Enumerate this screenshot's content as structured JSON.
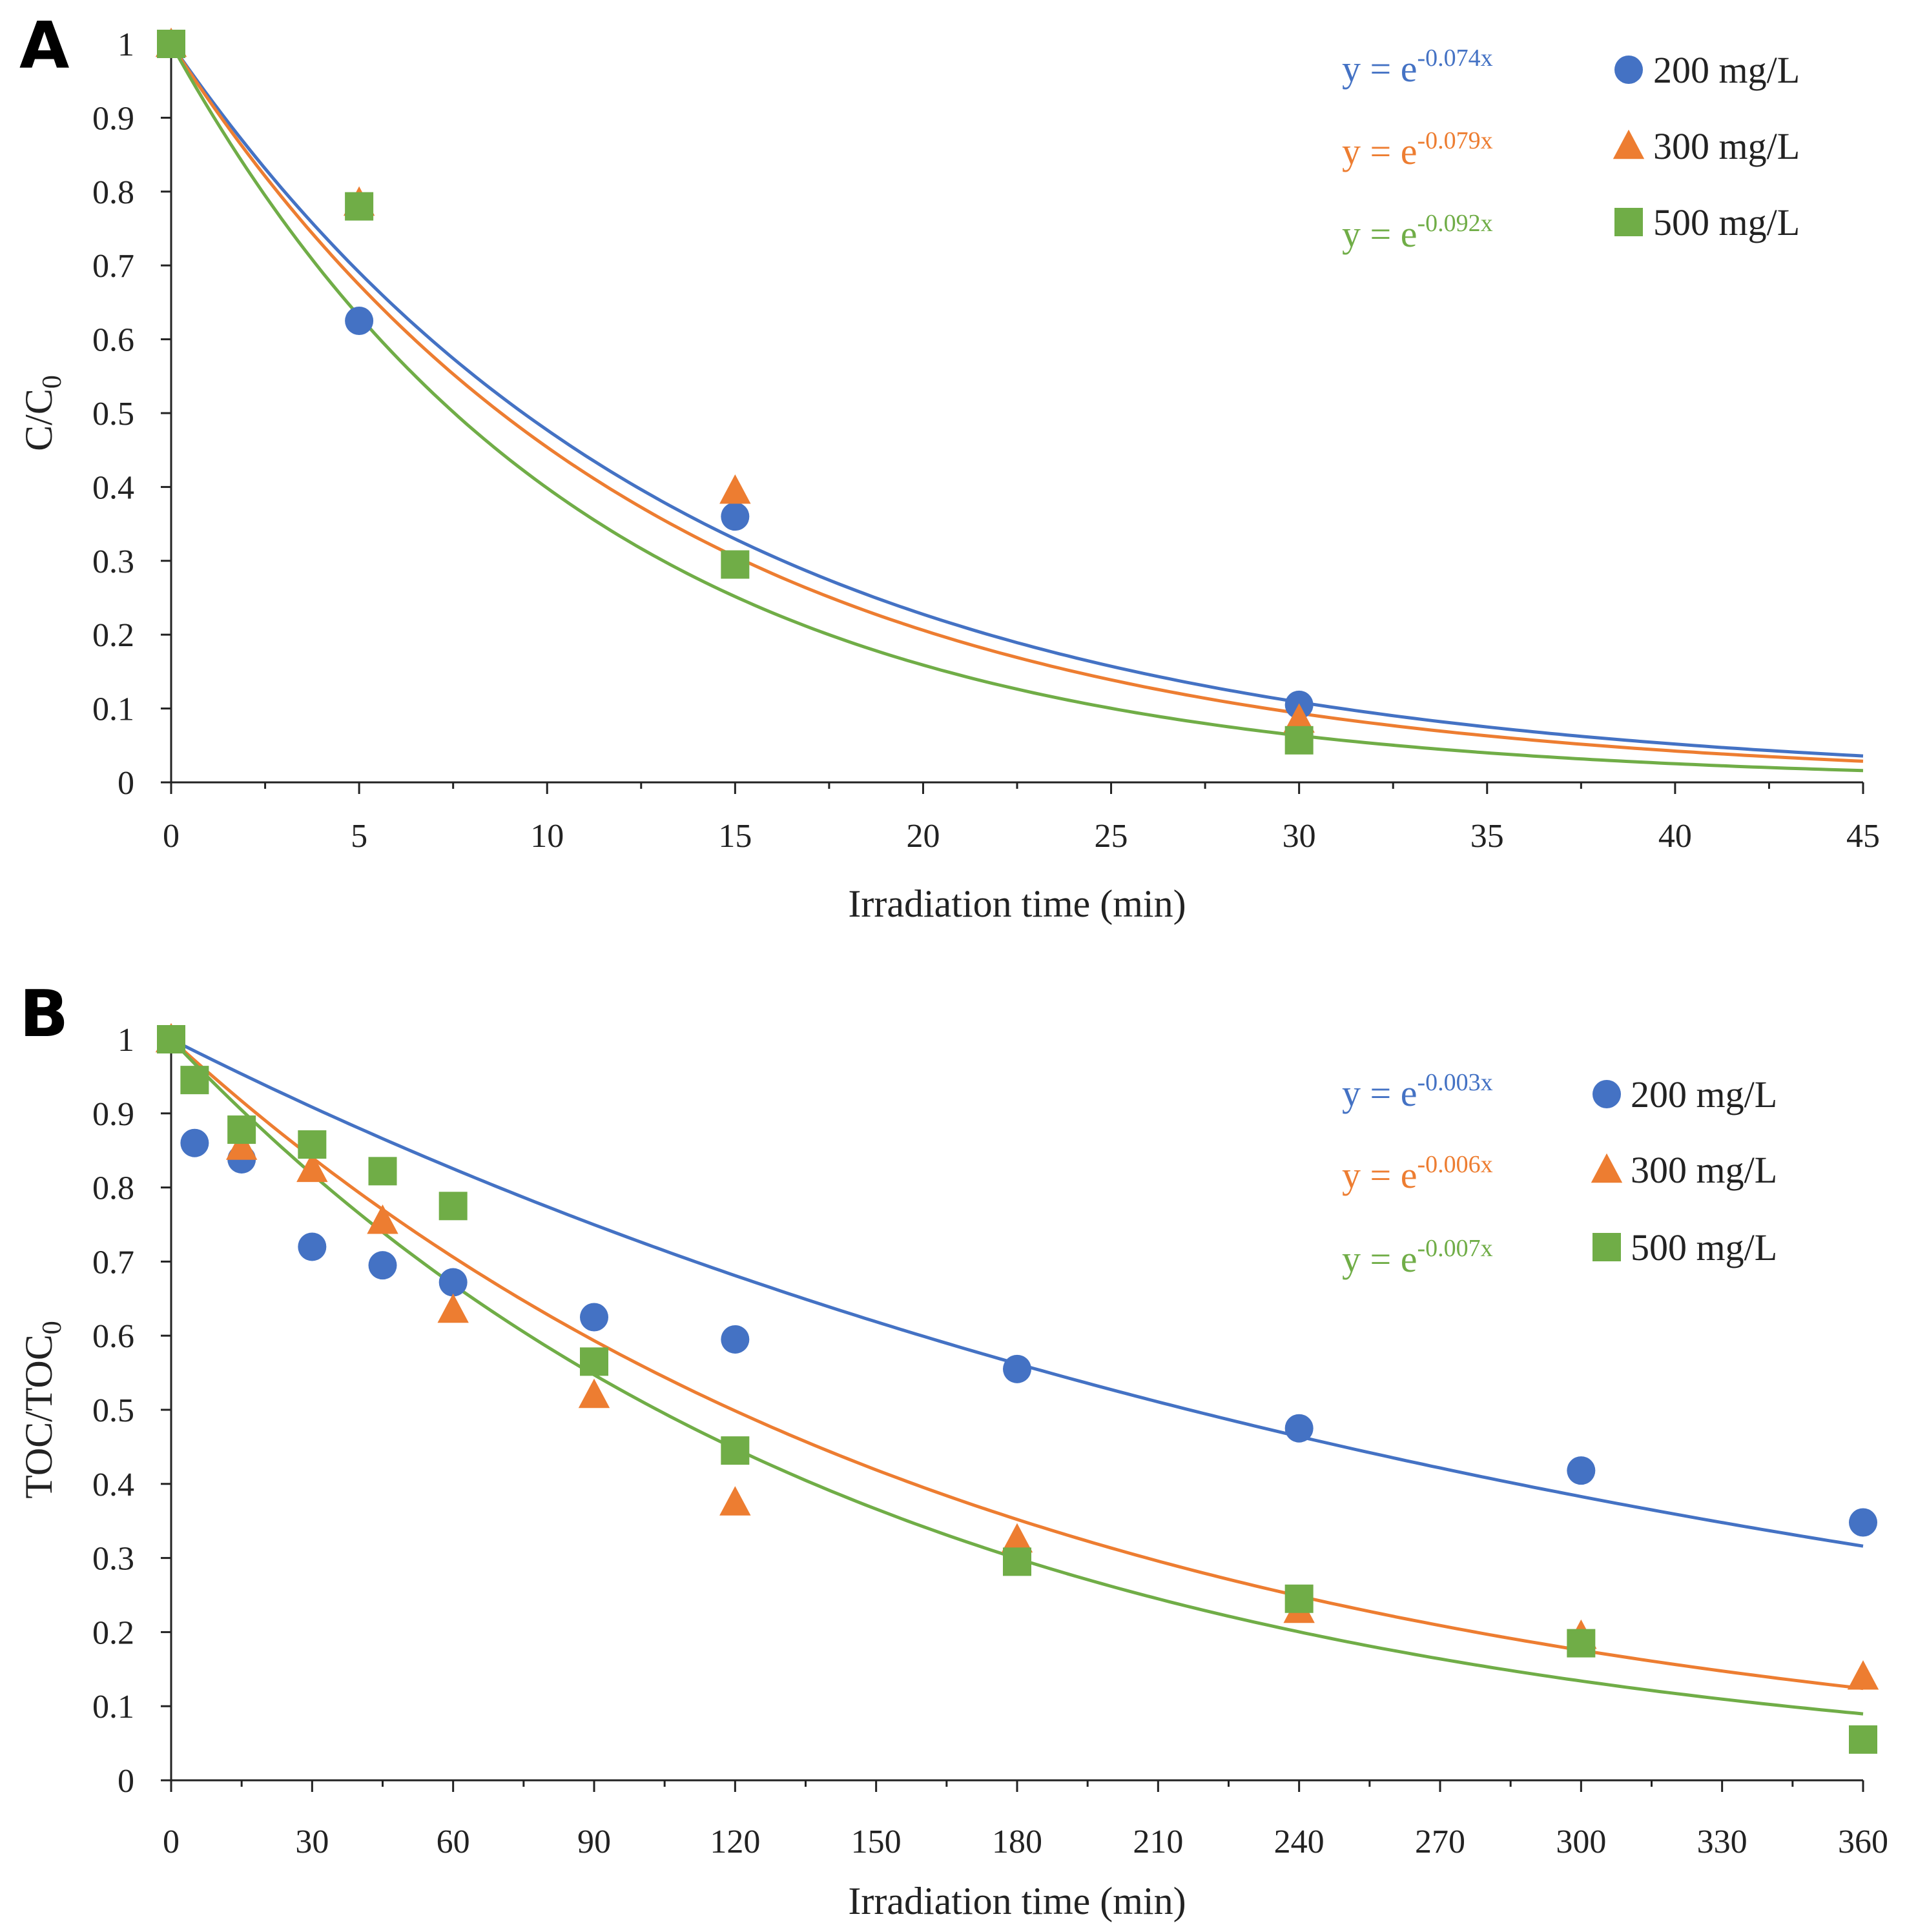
{
  "colors": {
    "s200": "#4472C4",
    "s300": "#ED7D31",
    "s500": "#70AD47"
  },
  "chart_data": [
    {
      "panel": "A",
      "type": "scatter",
      "xlabel": "Irradiation time (min)",
      "ylabel_main": "C/C",
      "ylabel_sub": "0",
      "xlim": [
        0,
        45
      ],
      "ylim": [
        0,
        1
      ],
      "xticks": [
        0,
        5,
        10,
        15,
        20,
        25,
        30,
        35,
        40,
        45
      ],
      "yticks": [
        0,
        0.1,
        0.2,
        0.3,
        0.4,
        0.5,
        0.6,
        0.7,
        0.8,
        0.9,
        1
      ],
      "legend_position": "top-right",
      "series": [
        {
          "name": "200 mg/L",
          "marker": "circle",
          "color_key": "s200",
          "eq_base": "y = e",
          "eq_exp": "-0.074x",
          "k": 0.074,
          "points": [
            [
              0,
              1
            ],
            [
              5,
              0.625
            ],
            [
              15,
              0.36
            ],
            [
              30,
              0.105
            ]
          ]
        },
        {
          "name": "300 mg/L",
          "marker": "triangle",
          "color_key": "s300",
          "eq_base": "y = e",
          "eq_exp": "-0.079x",
          "k": 0.079,
          "points": [
            [
              0,
              1
            ],
            [
              5,
              0.785
            ],
            [
              15,
              0.395
            ],
            [
              30,
              0.085
            ]
          ]
        },
        {
          "name": "500 mg/L",
          "marker": "square",
          "color_key": "s500",
          "eq_base": "y = e",
          "eq_exp": "-0.092x",
          "k": 0.092,
          "points": [
            [
              0,
              1
            ],
            [
              5,
              0.78
            ],
            [
              15,
              0.295
            ],
            [
              30,
              0.057
            ]
          ]
        }
      ]
    },
    {
      "panel": "B",
      "type": "scatter",
      "xlabel": "Irradiation time (min)",
      "ylabel_main": "TOC/TOC",
      "ylabel_sub": "0",
      "xlim": [
        0,
        360
      ],
      "ylim": [
        0,
        1
      ],
      "xticks": [
        0,
        30,
        60,
        90,
        120,
        150,
        180,
        210,
        240,
        270,
        300,
        330,
        360
      ],
      "yticks": [
        0,
        0.1,
        0.2,
        0.3,
        0.4,
        0.5,
        0.6,
        0.7,
        0.8,
        0.9,
        1
      ],
      "legend_position": "top-right",
      "series": [
        {
          "name": "200 mg/L",
          "marker": "circle",
          "color_key": "s200",
          "eq_base": "y = e",
          "eq_exp": "-0.003x",
          "k": 0.0032,
          "points": [
            [
              0,
              1
            ],
            [
              5,
              0.86
            ],
            [
              15,
              0.838
            ],
            [
              30,
              0.72
            ],
            [
              45,
              0.695
            ],
            [
              60,
              0.672
            ],
            [
              90,
              0.625
            ],
            [
              120,
              0.595
            ],
            [
              180,
              0.555
            ],
            [
              240,
              0.475
            ],
            [
              300,
              0.418
            ],
            [
              360,
              0.348
            ]
          ]
        },
        {
          "name": "300 mg/L",
          "marker": "triangle",
          "color_key": "s300",
          "eq_base": "y = e",
          "eq_exp": "-0.006x",
          "k": 0.0058,
          "points": [
            [
              0,
              1
            ],
            [
              15,
              0.855
            ],
            [
              30,
              0.825
            ],
            [
              45,
              0.755
            ],
            [
              60,
              0.635
            ],
            [
              90,
              0.52
            ],
            [
              120,
              0.375
            ],
            [
              180,
              0.325
            ],
            [
              240,
              0.23
            ],
            [
              300,
              0.195
            ],
            [
              360,
              0.14
            ]
          ]
        },
        {
          "name": "500 mg/L",
          "marker": "square",
          "color_key": "s500",
          "eq_base": "y = e",
          "eq_exp": "-0.007x",
          "k": 0.0067,
          "points": [
            [
              0,
              1
            ],
            [
              5,
              0.945
            ],
            [
              15,
              0.878
            ],
            [
              30,
              0.858
            ],
            [
              45,
              0.822
            ],
            [
              60,
              0.775
            ],
            [
              90,
              0.565
            ],
            [
              120,
              0.445
            ],
            [
              180,
              0.295
            ],
            [
              240,
              0.245
            ],
            [
              300,
              0.185
            ],
            [
              360,
              0.055
            ]
          ]
        }
      ]
    }
  ]
}
